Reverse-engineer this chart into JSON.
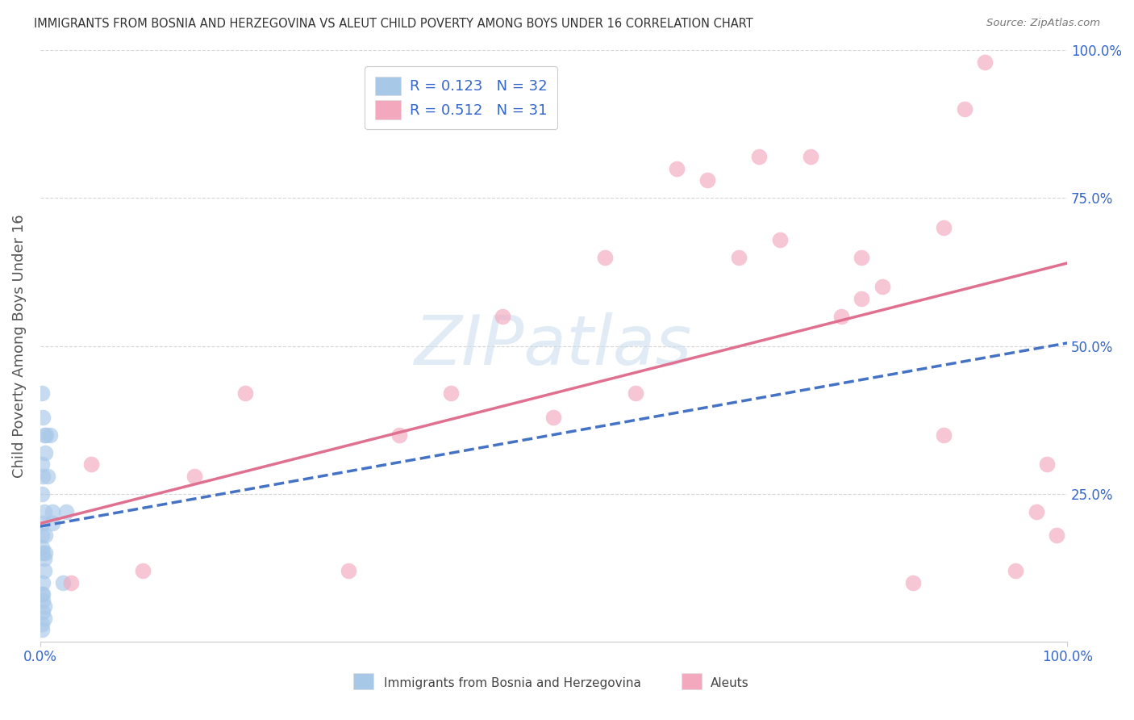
{
  "title": "IMMIGRANTS FROM BOSNIA AND HERZEGOVINA VS ALEUT CHILD POVERTY AMONG BOYS UNDER 16 CORRELATION CHART",
  "source": "Source: ZipAtlas.com",
  "ylabel": "Child Poverty Among Boys Under 16",
  "watermark": "ZIPatlas",
  "legend_line1": "R = 0.123   N = 32",
  "legend_line2": "R = 0.512   N = 31",
  "legend_labels": [
    "Immigrants from Bosnia and Herzegovina",
    "Aleuts"
  ],
  "blue_color": "#a8c8e8",
  "pink_color": "#f4a8be",
  "blue_line_color": "#4472c4",
  "pink_line_color": "#e07090",
  "grid_color": "#cccccc",
  "background_color": "#ffffff",
  "title_color": "#333333",
  "source_color": "#777777",
  "ylabel_color": "#555555",
  "tick_color": "#3366cc",
  "blue_x": [
    0.002,
    0.003,
    0.004,
    0.002,
    0.003,
    0.002,
    0.004,
    0.003,
    0.002,
    0.002,
    0.003,
    0.004,
    0.006,
    0.005,
    0.007,
    0.01,
    0.004,
    0.012,
    0.003,
    0.002,
    0.005,
    0.003,
    0.004,
    0.025,
    0.022,
    0.004,
    0.002,
    0.003,
    0.012,
    0.002,
    0.005,
    0.003
  ],
  "blue_y": [
    0.42,
    0.38,
    0.35,
    0.3,
    0.28,
    0.25,
    0.22,
    0.2,
    0.18,
    0.16,
    0.15,
    0.14,
    0.35,
    0.32,
    0.28,
    0.35,
    0.12,
    0.22,
    0.1,
    0.08,
    0.18,
    0.05,
    0.04,
    0.22,
    0.1,
    0.06,
    0.02,
    0.08,
    0.2,
    0.03,
    0.15,
    0.07
  ],
  "pink_x": [
    0.03,
    0.05,
    0.1,
    0.15,
    0.2,
    0.35,
    0.4,
    0.5,
    0.55,
    0.62,
    0.65,
    0.7,
    0.75,
    0.78,
    0.8,
    0.82,
    0.85,
    0.88,
    0.9,
    0.92,
    0.95,
    0.97,
    0.98,
    0.99,
    0.68,
    0.72,
    0.8,
    0.88,
    0.58,
    0.45,
    0.3
  ],
  "pink_y": [
    0.1,
    0.3,
    0.12,
    0.28,
    0.42,
    0.35,
    0.42,
    0.38,
    0.65,
    0.8,
    0.78,
    0.82,
    0.82,
    0.55,
    0.58,
    0.6,
    0.1,
    0.35,
    0.9,
    0.98,
    0.12,
    0.22,
    0.3,
    0.18,
    0.65,
    0.68,
    0.65,
    0.7,
    0.42,
    0.55,
    0.12
  ],
  "blue_intercept": 0.195,
  "blue_slope": 0.31,
  "pink_intercept": 0.2,
  "pink_slope": 0.44,
  "yticks": [
    0.0,
    0.25,
    0.5,
    0.75,
    1.0
  ],
  "ytick_labels": [
    "",
    "25.0%",
    "50.0%",
    "75.0%",
    "100.0%"
  ]
}
